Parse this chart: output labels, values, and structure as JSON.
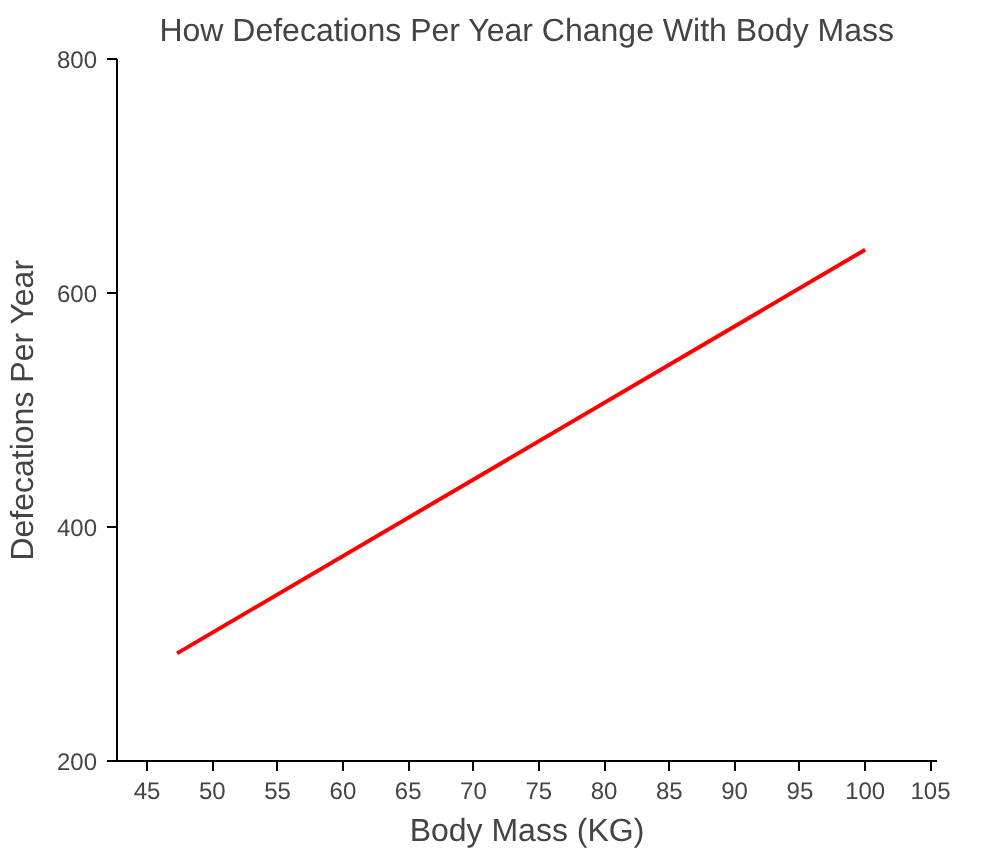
{
  "chart_data": {
    "type": "line",
    "title": "How Defecations Per Year Change With Body Mass",
    "xlabel": "Body Mass (KG)",
    "ylabel": "Defecations Per Year",
    "x": [
      47.3,
      100
    ],
    "series": [
      {
        "color": "#ff0000",
        "values": [
          292,
          637
        ]
      }
    ],
    "xlim": [
      42.7,
      105.5
    ],
    "ylim": [
      200,
      800
    ],
    "xticks": [
      45,
      50,
      55,
      60,
      65,
      70,
      75,
      80,
      85,
      90,
      95,
      100,
      105
    ],
    "yticks": [
      200,
      400,
      600,
      800
    ],
    "grid": false,
    "marker": "none",
    "line_style": "solid"
  }
}
